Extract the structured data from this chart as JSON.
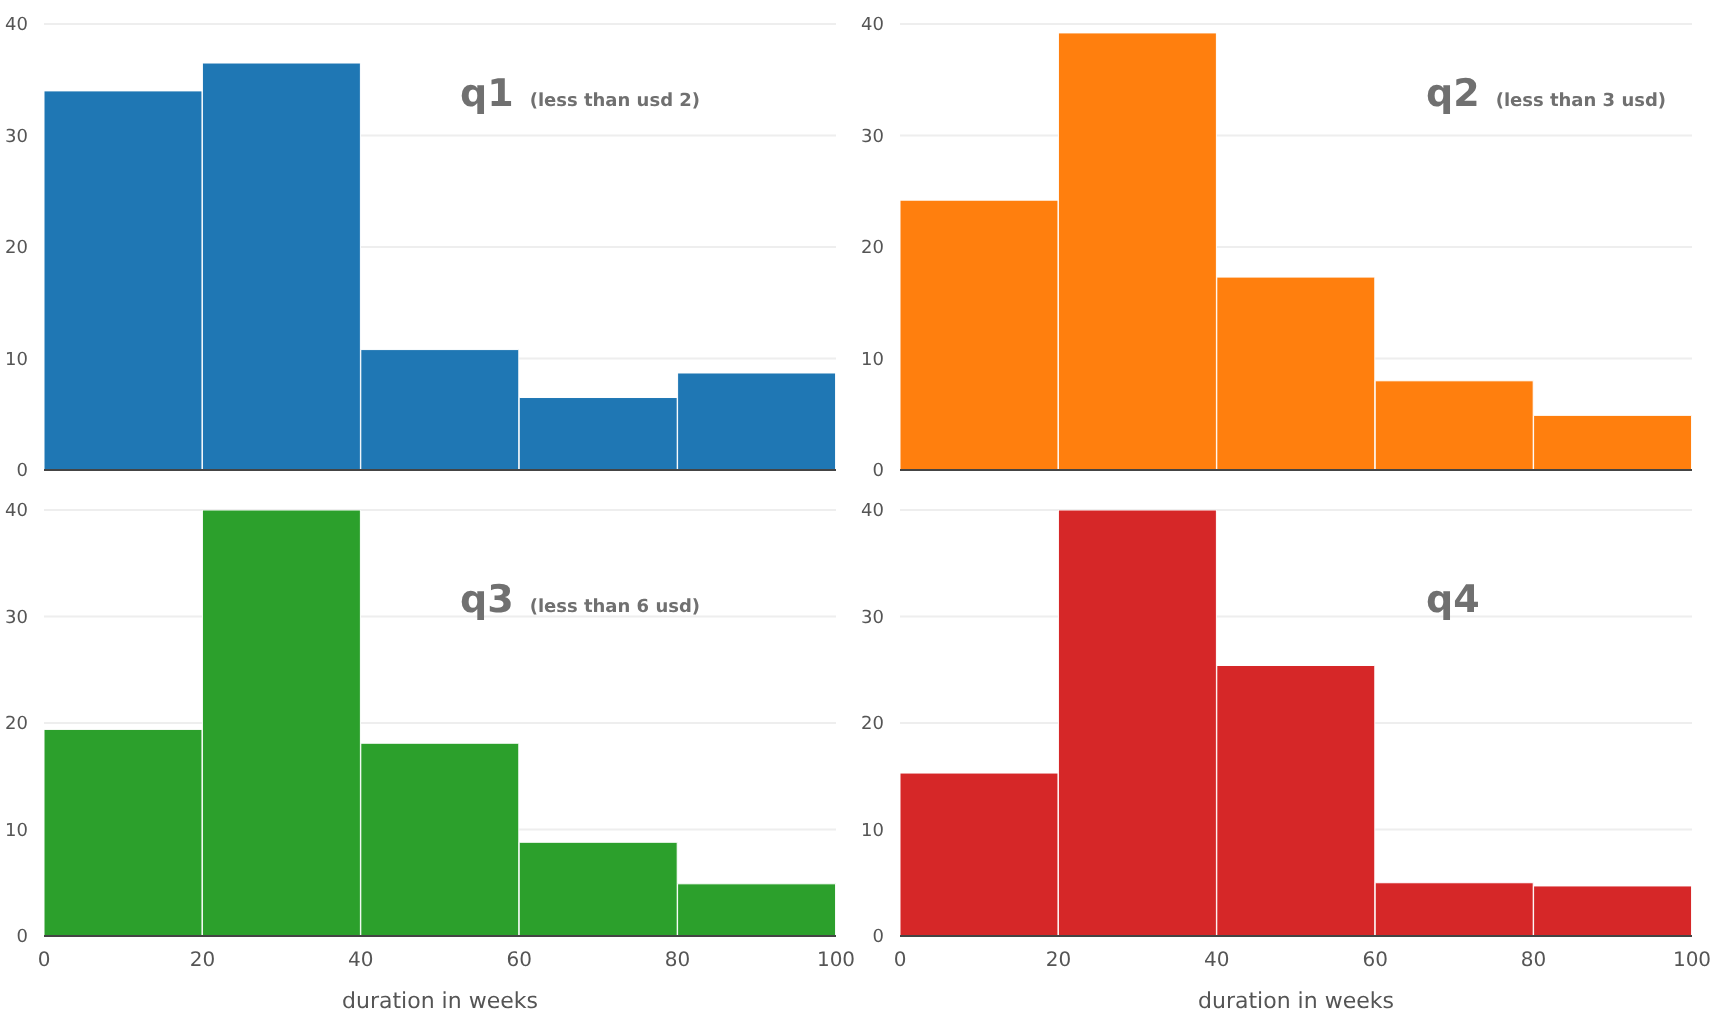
{
  "chart_data": [
    {
      "type": "histogram",
      "title": "q1",
      "subtitle": "(less than usd 2)",
      "bins": [
        0,
        20,
        40,
        60,
        80,
        100
      ],
      "values": [
        34,
        36.5,
        10.8,
        6.5,
        8.7
      ],
      "color": "#1f77b4",
      "xlim": [
        0,
        100
      ],
      "ylim": [
        0,
        40
      ],
      "yticks": [
        0,
        10,
        20,
        30,
        40
      ],
      "grid": "y",
      "tick_labels": "y"
    },
    {
      "type": "histogram",
      "title": "q2",
      "subtitle": "(less than 3 usd)",
      "bins": [
        0,
        20,
        40,
        60,
        80,
        100
      ],
      "values": [
        24.2,
        39.2,
        17.3,
        8,
        4.9
      ],
      "color": "#ff7f0e",
      "xlim": [
        0,
        100
      ],
      "ylim": [
        0,
        40
      ],
      "yticks": [
        0,
        10,
        20,
        30,
        40
      ],
      "grid": "y",
      "tick_labels": "y"
    },
    {
      "type": "histogram",
      "title": "q3",
      "subtitle": "(less than 6 usd)",
      "xlabel": "duration in weeks",
      "bins": [
        0,
        20,
        40,
        60,
        80,
        100
      ],
      "values": [
        19.4,
        40,
        18.1,
        8.8,
        4.9
      ],
      "color": "#2ca02c",
      "xlim": [
        0,
        100
      ],
      "xticks": [
        0,
        20,
        40,
        60,
        80,
        100
      ],
      "ylim": [
        0,
        40
      ],
      "yticks": [
        0,
        10,
        20,
        30,
        40
      ],
      "grid": "y"
    },
    {
      "type": "histogram",
      "title": "q4",
      "xlabel": "duration in weeks",
      "bins": [
        0,
        20,
        40,
        60,
        80,
        100
      ],
      "values": [
        15.3,
        40,
        25.4,
        5,
        4.7
      ],
      "color": "#d62728",
      "xlim": [
        0,
        100
      ],
      "xticks": [
        0,
        20,
        40,
        60,
        80,
        100
      ],
      "ylim": [
        0,
        40
      ],
      "yticks": [
        0,
        10,
        20,
        30,
        40
      ],
      "grid": "y"
    }
  ]
}
